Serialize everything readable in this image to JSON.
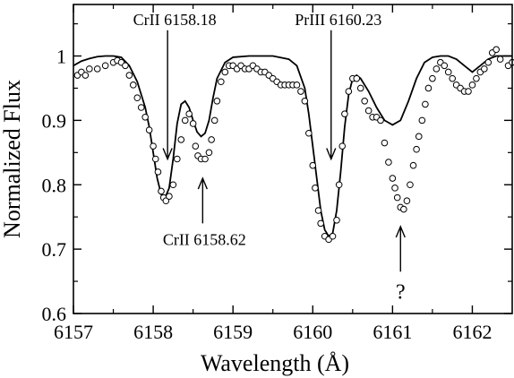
{
  "chart_data": {
    "type": "line",
    "title": "",
    "xlabel": "Wavelength (Å)",
    "ylabel": "Normalized Flux",
    "xlim": [
      6157.0,
      6162.5
    ],
    "ylim": [
      0.6,
      1.08
    ],
    "x_ticks": [
      6157,
      6158,
      6159,
      6160,
      6161,
      6162
    ],
    "y_ticks": [
      0.6,
      0.7,
      0.8,
      0.9,
      1.0
    ],
    "x_tick_labels": [
      "6157",
      "6158",
      "6159",
      "6160",
      "6161",
      "6162"
    ],
    "y_tick_labels": [
      "0.6",
      "0.7",
      "0.8",
      "0.9",
      "1"
    ],
    "grid": false,
    "series": [
      {
        "style": "line",
        "points": [
          [
            6157.0,
            0.985
          ],
          [
            6157.1,
            0.992
          ],
          [
            6157.2,
            0.996
          ],
          [
            6157.3,
            0.999
          ],
          [
            6157.4,
            1.0
          ],
          [
            6157.5,
            1.0
          ],
          [
            6157.6,
            0.998
          ],
          [
            6157.7,
            0.985
          ],
          [
            6157.8,
            0.96
          ],
          [
            6157.9,
            0.92
          ],
          [
            6157.95,
            0.89
          ],
          [
            6158.0,
            0.85
          ],
          [
            6158.05,
            0.81
          ],
          [
            6158.1,
            0.785
          ],
          [
            6158.15,
            0.78
          ],
          [
            6158.2,
            0.795
          ],
          [
            6158.25,
            0.84
          ],
          [
            6158.3,
            0.895
          ],
          [
            6158.35,
            0.925
          ],
          [
            6158.4,
            0.93
          ],
          [
            6158.45,
            0.92
          ],
          [
            6158.5,
            0.9
          ],
          [
            6158.55,
            0.882
          ],
          [
            6158.6,
            0.875
          ],
          [
            6158.65,
            0.88
          ],
          [
            6158.7,
            0.9
          ],
          [
            6158.75,
            0.935
          ],
          [
            6158.8,
            0.965
          ],
          [
            6158.9,
            0.99
          ],
          [
            6159.0,
            0.998
          ],
          [
            6159.2,
            1.0
          ],
          [
            6159.5,
            1.0
          ],
          [
            6159.7,
            0.995
          ],
          [
            6159.8,
            0.985
          ],
          [
            6159.9,
            0.95
          ],
          [
            6159.95,
            0.91
          ],
          [
            6160.0,
            0.86
          ],
          [
            6160.05,
            0.81
          ],
          [
            6160.1,
            0.76
          ],
          [
            6160.15,
            0.73
          ],
          [
            6160.2,
            0.72
          ],
          [
            6160.25,
            0.725
          ],
          [
            6160.3,
            0.76
          ],
          [
            6160.35,
            0.82
          ],
          [
            6160.4,
            0.89
          ],
          [
            6160.45,
            0.94
          ],
          [
            6160.5,
            0.965
          ],
          [
            6160.55,
            0.97
          ],
          [
            6160.6,
            0.965
          ],
          [
            6160.7,
            0.945
          ],
          [
            6160.8,
            0.92
          ],
          [
            6160.9,
            0.9
          ],
          [
            6161.0,
            0.893
          ],
          [
            6161.1,
            0.9
          ],
          [
            6161.2,
            0.93
          ],
          [
            6161.3,
            0.965
          ],
          [
            6161.4,
            0.99
          ],
          [
            6161.5,
            0.998
          ],
          [
            6161.6,
            1.0
          ],
          [
            6161.7,
            1.0
          ],
          [
            6161.8,
            0.995
          ],
          [
            6161.9,
            0.985
          ],
          [
            6162.0,
            0.975
          ],
          [
            6162.1,
            0.985
          ],
          [
            6162.2,
            0.995
          ],
          [
            6162.3,
            1.0
          ],
          [
            6162.4,
            1.0
          ],
          [
            6162.5,
            1.0
          ]
        ]
      },
      {
        "style": "markers",
        "marker": "open-circle",
        "points": [
          [
            6157.05,
            0.97
          ],
          [
            6157.1,
            0.975
          ],
          [
            6157.15,
            0.97
          ],
          [
            6157.2,
            0.98
          ],
          [
            6157.3,
            0.98
          ],
          [
            6157.4,
            0.985
          ],
          [
            6157.5,
            0.99
          ],
          [
            6157.55,
            0.993
          ],
          [
            6157.6,
            0.99
          ],
          [
            6157.65,
            0.985
          ],
          [
            6157.7,
            0.97
          ],
          [
            6157.75,
            0.955
          ],
          [
            6157.8,
            0.935
          ],
          [
            6157.85,
            0.92
          ],
          [
            6157.9,
            0.905
          ],
          [
            6157.95,
            0.885
          ],
          [
            6158.0,
            0.86
          ],
          [
            6158.03,
            0.84
          ],
          [
            6158.06,
            0.82
          ],
          [
            6158.1,
            0.79
          ],
          [
            6158.13,
            0.78
          ],
          [
            6158.16,
            0.775
          ],
          [
            6158.2,
            0.782
          ],
          [
            6158.25,
            0.8
          ],
          [
            6158.3,
            0.84
          ],
          [
            6158.35,
            0.87
          ],
          [
            6158.4,
            0.9
          ],
          [
            6158.45,
            0.91
          ],
          [
            6158.5,
            0.895
          ],
          [
            6158.53,
            0.86
          ],
          [
            6158.56,
            0.845
          ],
          [
            6158.6,
            0.84
          ],
          [
            6158.65,
            0.84
          ],
          [
            6158.7,
            0.85
          ],
          [
            6158.73,
            0.87
          ],
          [
            6158.77,
            0.9
          ],
          [
            6158.8,
            0.93
          ],
          [
            6158.85,
            0.96
          ],
          [
            6158.9,
            0.975
          ],
          [
            6158.95,
            0.985
          ],
          [
            6159.0,
            0.985
          ],
          [
            6159.05,
            0.98
          ],
          [
            6159.1,
            0.985
          ],
          [
            6159.15,
            0.98
          ],
          [
            6159.2,
            0.98
          ],
          [
            6159.25,
            0.985
          ],
          [
            6159.3,
            0.98
          ],
          [
            6159.35,
            0.975
          ],
          [
            6159.4,
            0.975
          ],
          [
            6159.45,
            0.97
          ],
          [
            6159.5,
            0.965
          ],
          [
            6159.55,
            0.96
          ],
          [
            6159.6,
            0.955
          ],
          [
            6159.65,
            0.955
          ],
          [
            6159.7,
            0.955
          ],
          [
            6159.75,
            0.955
          ],
          [
            6159.8,
            0.955
          ],
          [
            6159.85,
            0.945
          ],
          [
            6159.9,
            0.93
          ],
          [
            6159.95,
            0.88
          ],
          [
            6160.0,
            0.83
          ],
          [
            6160.03,
            0.795
          ],
          [
            6160.07,
            0.76
          ],
          [
            6160.1,
            0.74
          ],
          [
            6160.15,
            0.72
          ],
          [
            6160.2,
            0.715
          ],
          [
            6160.25,
            0.72
          ],
          [
            6160.3,
            0.745
          ],
          [
            6160.33,
            0.8
          ],
          [
            6160.37,
            0.86
          ],
          [
            6160.4,
            0.91
          ],
          [
            6160.45,
            0.945
          ],
          [
            6160.5,
            0.965
          ],
          [
            6160.55,
            0.965
          ],
          [
            6160.6,
            0.95
          ],
          [
            6160.65,
            0.93
          ],
          [
            6160.7,
            0.915
          ],
          [
            6160.75,
            0.905
          ],
          [
            6160.8,
            0.905
          ],
          [
            6160.85,
            0.9
          ],
          [
            6160.9,
            0.865
          ],
          [
            6160.95,
            0.835
          ],
          [
            6161.0,
            0.81
          ],
          [
            6161.03,
            0.795
          ],
          [
            6161.06,
            0.78
          ],
          [
            6161.1,
            0.765
          ],
          [
            6161.14,
            0.762
          ],
          [
            6161.18,
            0.775
          ],
          [
            6161.22,
            0.8
          ],
          [
            6161.26,
            0.83
          ],
          [
            6161.3,
            0.855
          ],
          [
            6161.33,
            0.875
          ],
          [
            6161.37,
            0.9
          ],
          [
            6161.41,
            0.925
          ],
          [
            6161.45,
            0.95
          ],
          [
            6161.5,
            0.965
          ],
          [
            6161.55,
            0.98
          ],
          [
            6161.6,
            0.99
          ],
          [
            6161.65,
            0.985
          ],
          [
            6161.7,
            0.975
          ],
          [
            6161.75,
            0.965
          ],
          [
            6161.8,
            0.955
          ],
          [
            6161.85,
            0.95
          ],
          [
            6161.9,
            0.945
          ],
          [
            6161.95,
            0.945
          ],
          [
            6162.0,
            0.955
          ],
          [
            6162.05,
            0.965
          ],
          [
            6162.1,
            0.975
          ],
          [
            6162.15,
            0.98
          ],
          [
            6162.2,
            0.99
          ],
          [
            6162.25,
            1.005
          ],
          [
            6162.3,
            1.01
          ],
          [
            6162.35,
            0.995
          ],
          [
            6162.45,
            0.985
          ],
          [
            6162.5,
            0.99
          ]
        ]
      }
    ],
    "annotations": [
      {
        "text": "CrII 6158.18",
        "x": 6158.18,
        "direction": "down",
        "arrow_from": 1.04,
        "arrow_to": 0.84
      },
      {
        "text": "CrII 6158.62",
        "x": 6158.62,
        "direction": "up",
        "arrow_from": 0.74,
        "arrow_to": 0.81
      },
      {
        "text": "PrIII 6160.23",
        "x": 6160.23,
        "direction": "down",
        "arrow_from": 1.04,
        "arrow_to": 0.84
      },
      {
        "text": "?",
        "x": 6161.1,
        "direction": "up",
        "arrow_from": 0.665,
        "arrow_to": 0.735
      }
    ]
  }
}
